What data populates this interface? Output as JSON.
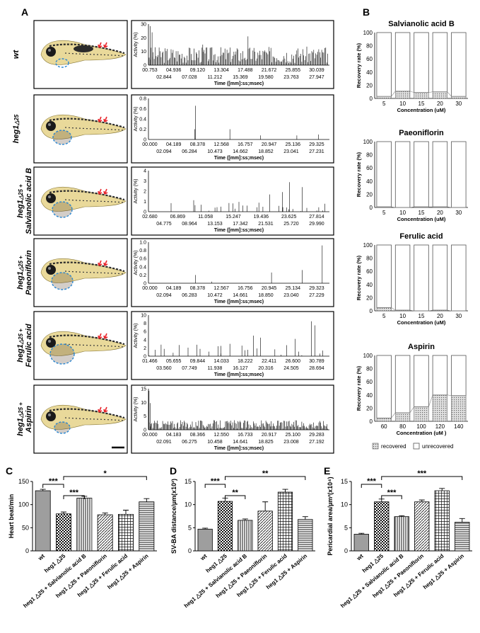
{
  "panel_labels": {
    "A": "A",
    "B": "B",
    "C": "C",
    "D": "D",
    "E": "E"
  },
  "colors": {
    "wt": "#9e9e9e",
    "accent": "#000000",
    "dash": "#2a86d1",
    "arrow": "#e8242a"
  },
  "rows": [
    {
      "group": "wt",
      "label_main": "wt",
      "label_sub": "",
      "ylim": [
        0,
        30
      ],
      "yticks": [
        "30",
        "20",
        "10",
        "0"
      ],
      "ticks_top": [
        "00.753",
        "04.936",
        "09.120",
        "13.304",
        "17.488",
        "21.672",
        "25.855",
        "30.039"
      ],
      "ticks_bot": [
        "02.844",
        "07.028",
        "11.212",
        "15.369",
        "19.580",
        "23.763",
        "27.947"
      ],
      "xlabel": "Time ([mm]:ss;msec)",
      "ylabel": "Activity (%)"
    },
    {
      "group": "heg1",
      "label_main": "heg1",
      "label_sub": "△25",
      "ylim": [
        0,
        0.8
      ],
      "yticks": [
        "0.8",
        "0.6",
        "0.4",
        "0.2",
        "0"
      ],
      "ticks_top": [
        "00.000",
        "04.189",
        "08.378",
        "12.568",
        "16.757",
        "20.947",
        "25.136",
        "29.325"
      ],
      "ticks_bot": [
        "02.094",
        "06.284",
        "10.473",
        "14.662",
        "18.852",
        "23.041",
        "27.231"
      ],
      "xlabel": "Time ([mm]:ss;msec)",
      "ylabel": "Activity (%)"
    },
    {
      "group": "salB",
      "label_main": "heg1",
      "label_sub": "△25 +",
      "label_drug": "Salvianolic acid B",
      "ylim": [
        0,
        4
      ],
      "yticks": [
        "4",
        "3",
        "2",
        "1",
        "0"
      ],
      "ticks_top": [
        "02.680",
        "06.869",
        "11.058",
        "15.247",
        "19.436",
        "23.625",
        "27.814"
      ],
      "ticks_bot": [
        "04.775",
        "08.964",
        "13.153",
        "17.342",
        "21.531",
        "25.720",
        "29.990"
      ],
      "xlabel": "Time ([mm]:ss;msec)",
      "ylabel": "Activity (%)"
    },
    {
      "group": "pae",
      "label_main": "heg1",
      "label_sub": "△25 +",
      "label_drug": "Paeoniflorin",
      "ylim": [
        0,
        1
      ],
      "yticks": [
        "1.0",
        "0.8",
        "0.6",
        "0.4",
        "0.2",
        "0"
      ],
      "ticks_top": [
        "00.000",
        "04.189",
        "08.378",
        "12.567",
        "16.756",
        "20.945",
        "25.134",
        "29.323"
      ],
      "ticks_bot": [
        "02.094",
        "06.283",
        "10.472",
        "14.661",
        "18.850",
        "23.040",
        "27.229"
      ],
      "xlabel": "Time ([mm]:ss;msec)",
      "ylabel": "Activity (%)"
    },
    {
      "group": "fer",
      "label_main": "heg1",
      "label_sub": "△25 +",
      "label_drug": "Ferulic acid",
      "ylim": [
        0,
        10
      ],
      "yticks": [
        "10",
        "8",
        "6",
        "4",
        "2",
        "0"
      ],
      "ticks_top": [
        "01.466",
        "05.655",
        "09.844",
        "14.033",
        "18.222",
        "22.411",
        "26.600",
        "30.789"
      ],
      "ticks_bot": [
        "03.560",
        "07.749",
        "11.938",
        "16.127",
        "20.316",
        "24.505",
        "28.694"
      ],
      "xlabel": "Time ([mm]:ss;msec)",
      "ylabel": "Activity (%)"
    },
    {
      "group": "asp",
      "label_main": "heg1",
      "label_sub": "△25 +",
      "label_drug": "Aspirin",
      "ylim": [
        0,
        15
      ],
      "yticks": [
        "15",
        "10",
        "5",
        "0"
      ],
      "ticks_top": [
        "00.000",
        "04.183",
        "08.366",
        "12.550",
        "16.733",
        "20.917",
        "25.100",
        "29.283"
      ],
      "ticks_bot": [
        "02.091",
        "06.275",
        "10.458",
        "14.641",
        "18.825",
        "23.008",
        "27.192"
      ],
      "xlabel": "Time ([mm]:ss;msec)",
      "ylabel": "Activity (%)"
    }
  ],
  "chart_data": [
    {
      "type": "bar",
      "panel": "B",
      "title": "Salvianolic acid B",
      "categories": [
        "5",
        "10",
        "15",
        "20",
        "30"
      ],
      "series": [
        {
          "name": "recovered",
          "values": [
            3,
            11,
            9,
            10,
            3
          ]
        },
        {
          "name": "unrecovered",
          "values": [
            97,
            89,
            91,
            90,
            97
          ]
        }
      ],
      "xlabel": "Concentration (uM)",
      "ylabel": "Recovery rate (%)",
      "ylim": [
        0,
        100
      ],
      "yticks": [
        "0",
        "20",
        "40",
        "60",
        "80",
        "100"
      ]
    },
    {
      "type": "bar",
      "panel": "B",
      "title": "Paeoniflorin",
      "categories": [
        "5",
        "10",
        "15",
        "20",
        "30"
      ],
      "series": [
        {
          "name": "recovered",
          "values": [
            1,
            0,
            1,
            1,
            0
          ]
        },
        {
          "name": "unrecovered",
          "values": [
            99,
            100,
            99,
            99,
            100
          ]
        }
      ],
      "xlabel": "Concentration (uM)",
      "ylabel": "Recovery rate (%)",
      "ylim": [
        0,
        100
      ],
      "yticks": [
        "0",
        "20",
        "40",
        "60",
        "80",
        "100"
      ]
    },
    {
      "type": "bar",
      "panel": "B",
      "title": "Ferulic acid",
      "categories": [
        "5",
        "10",
        "15",
        "20",
        "30"
      ],
      "series": [
        {
          "name": "recovered",
          "values": [
            5,
            1,
            0,
            1,
            0
          ]
        },
        {
          "name": "unrecovered",
          "values": [
            95,
            99,
            100,
            99,
            100
          ]
        }
      ],
      "xlabel": "Concentration (uM)",
      "ylabel": "Recovery rate (%)",
      "ylim": [
        0,
        100
      ],
      "yticks": [
        "0",
        "20",
        "40",
        "60",
        "80",
        "100"
      ]
    },
    {
      "type": "bar",
      "panel": "B",
      "title": "Aspirin",
      "categories": [
        "60",
        "80",
        "100",
        "120",
        "140"
      ],
      "series": [
        {
          "name": "recovered",
          "values": [
            5,
            13,
            22,
            40,
            39
          ]
        },
        {
          "name": "unrecovered",
          "values": [
            95,
            87,
            78,
            60,
            61
          ]
        }
      ],
      "xlabel": "Concentration (uM )",
      "ylabel": "Recovery rate (%)",
      "ylim": [
        0,
        100
      ],
      "yticks": [
        "0",
        "20",
        "40",
        "60",
        "80",
        "100"
      ],
      "legend": [
        "recovered",
        "unrecovered"
      ]
    },
    {
      "type": "bar",
      "panel": "C",
      "ylabel": "Heart beat/min",
      "ylim": [
        0,
        150
      ],
      "yticks": [
        "0",
        "50",
        "100",
        "150"
      ],
      "categories": [
        "wt",
        "heg1 △25",
        "heg1 △25 + Salvianolic acid B",
        "heg1 △25 + Paeoniflorin",
        "heg1 △25 + Ferulic acid",
        "heg1 △25 + Aspirin"
      ],
      "values": [
        130,
        80,
        114,
        78,
        79,
        106
      ],
      "errors": [
        3,
        4,
        4,
        4,
        9,
        7
      ],
      "sig": [
        {
          "a": 0,
          "b": 1,
          "label": "***"
        },
        {
          "a": 1,
          "b": 2,
          "label": "***"
        },
        {
          "a": 1,
          "b": 5,
          "label": "*"
        }
      ]
    },
    {
      "type": "bar",
      "panel": "D",
      "ylabel": "SV-BA distance/µm(x10²)",
      "ylim": [
        0,
        15
      ],
      "yticks": [
        "0",
        "5",
        "10",
        "15"
      ],
      "categories": [
        "wt",
        "heg1 △25",
        "heg1 △25 + Salvianolic acid B",
        "heg1 △25 + Paeoniflorin",
        "heg1 △25 + Ferulic acid",
        "heg1 △25 + Aspirin"
      ],
      "values": [
        4.7,
        10.7,
        6.6,
        8.6,
        12.7,
        6.8
      ],
      "errors": [
        0.2,
        0.7,
        0.3,
        2.0,
        0.6,
        0.6
      ],
      "sig": [
        {
          "a": 0,
          "b": 1,
          "label": "***"
        },
        {
          "a": 1,
          "b": 2,
          "label": "**"
        },
        {
          "a": 1,
          "b": 5,
          "label": "**"
        }
      ]
    },
    {
      "type": "bar",
      "panel": "E",
      "ylabel": "Pericardial area/µm²(x10⁴)",
      "ylim": [
        0,
        15
      ],
      "yticks": [
        "0",
        "5",
        "10",
        "15"
      ],
      "categories": [
        "wt",
        "heg1 △25",
        "heg1 △25 + Salvianolic acid B",
        "heg1 △25 + Paeoniflorin",
        "heg1 △25 + Ferulic acid",
        "heg1 △25 + Aspirin"
      ],
      "values": [
        3.6,
        10.6,
        7.4,
        10.6,
        13.0,
        6.2
      ],
      "errors": [
        0.2,
        0.6,
        0.2,
        0.4,
        0.5,
        0.8
      ],
      "sig": [
        {
          "a": 0,
          "b": 1,
          "label": "***"
        },
        {
          "a": 1,
          "b": 2,
          "label": "***"
        },
        {
          "a": 1,
          "b": 5,
          "label": "***"
        }
      ]
    }
  ]
}
